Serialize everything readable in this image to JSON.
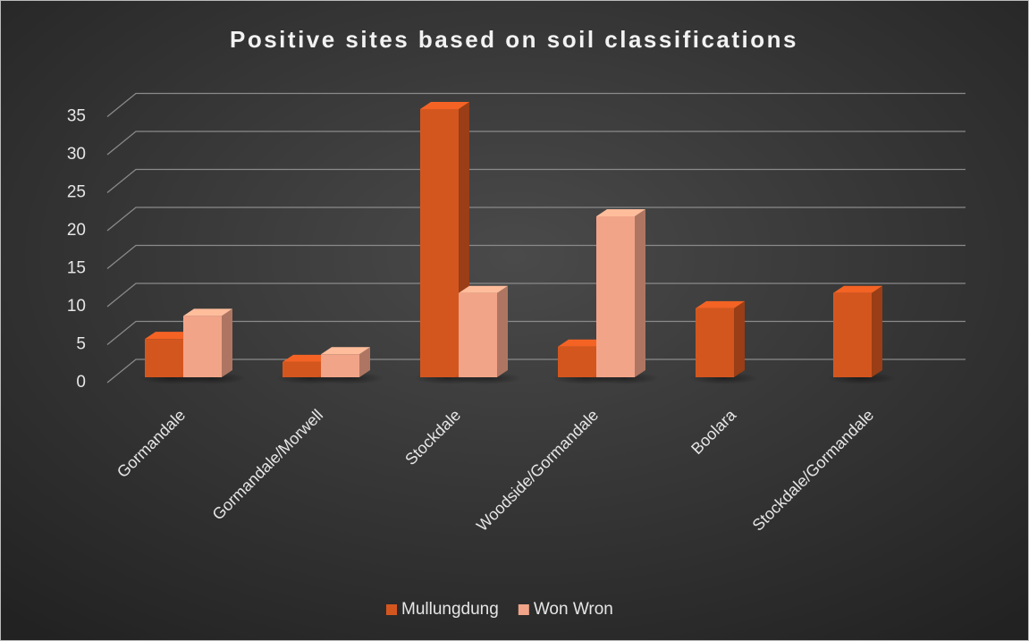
{
  "chart_data": {
    "type": "bar3d",
    "title": "Positive sites based on soil classifications",
    "categories": [
      "Gormandale",
      "Gormandale/Morwell",
      "Stockdale",
      "Woodside/Gormandale",
      "Boolara",
      "Stockdale/Gormandale"
    ],
    "series": [
      {
        "name": "Mullungdung",
        "color": "#d4561f",
        "values": [
          5,
          2,
          35,
          4,
          9,
          11
        ]
      },
      {
        "name": "Won Wron",
        "color": "#f2a488",
        "values": [
          8,
          3,
          11,
          21,
          null,
          null
        ]
      }
    ],
    "ylim": [
      0,
      35
    ],
    "yticks": [
      0,
      5,
      10,
      15,
      20,
      25,
      30,
      35
    ],
    "grid": true,
    "legend": "bottom"
  }
}
